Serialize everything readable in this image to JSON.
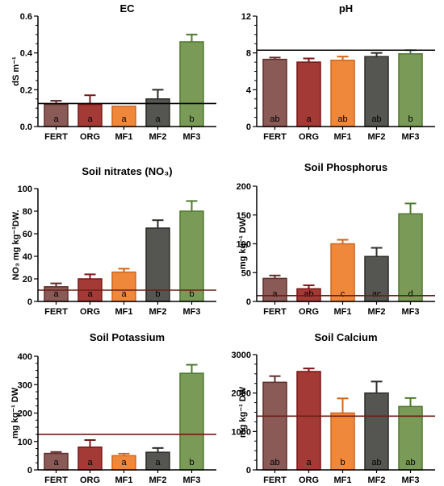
{
  "colors": {
    "FERT": "#8a5a57",
    "ORG": "#a33a36",
    "MF1": "#f0883c",
    "MF2": "#555551",
    "MF3": "#7a9a57",
    "FERT_edge": "#5e2f2c",
    "ORG_edge": "#7a1717",
    "MF1_edge": "#d0651c",
    "MF2_edge": "#2c2c28",
    "MF3_edge": "#4f7a2e",
    "ref_line_dark": "#000000",
    "ref_line_brown": "#6b1f16"
  },
  "chart_data": [
    {
      "id": "ec",
      "type": "bar",
      "title": "EC",
      "ylabel": "dS m⁻¹",
      "categories": [
        "FERT",
        "ORG",
        "MF1",
        "MF2",
        "MF3"
      ],
      "values": [
        0.12,
        0.12,
        0.11,
        0.15,
        0.46
      ],
      "errors": [
        0.02,
        0.05,
        0.0,
        0.05,
        0.04
      ],
      "letters": [
        "a",
        "a",
        "a",
        "a",
        "b"
      ],
      "ylim": [
        0,
        0.6
      ],
      "yticks": [
        "0.0",
        "0.2",
        "0.4",
        "0.6"
      ],
      "ytick_values": [
        0,
        0.2,
        0.4,
        0.6
      ],
      "minor_per_major": 4,
      "reference_line": 0.125,
      "reference_color": "ref_line_dark"
    },
    {
      "id": "ph",
      "type": "bar",
      "title": "pH",
      "ylabel": "",
      "categories": [
        "FERT",
        "ORG",
        "MF1",
        "MF2",
        "MF3"
      ],
      "values": [
        7.3,
        7.0,
        7.2,
        7.6,
        7.9
      ],
      "errors": [
        0.2,
        0.4,
        0.4,
        0.4,
        0.4
      ],
      "letters": [
        "ab",
        "a",
        "ab",
        "ab",
        "b"
      ],
      "ylim": [
        0,
        12
      ],
      "yticks": [
        "0",
        "4",
        "8",
        "12"
      ],
      "ytick_values": [
        0,
        4,
        8,
        12
      ],
      "minor_per_major": 4,
      "reference_line": 8.3,
      "reference_color": "ref_line_dark"
    },
    {
      "id": "nitrates",
      "type": "bar",
      "title": "Soil nitrates (NO₃)",
      "ylabel": "NO₃ mg kg⁻¹DW.",
      "categories": [
        "FERT",
        "ORG",
        "MF1",
        "MF2",
        "MF3"
      ],
      "values": [
        13,
        20,
        26,
        65,
        80
      ],
      "errors": [
        3,
        4,
        3,
        7,
        9
      ],
      "letters": [
        "a",
        "a",
        "a",
        "b",
        "b"
      ],
      "ylim": [
        0,
        100
      ],
      "yticks": [
        "0",
        "20",
        "40",
        "60",
        "80",
        "100"
      ],
      "ytick_values": [
        0,
        20,
        40,
        60,
        80,
        100
      ],
      "minor_per_major": 1,
      "reference_line": 10,
      "reference_color": "ref_line_brown"
    },
    {
      "id": "phosphorus",
      "type": "bar",
      "title": "Soil Phosphorus",
      "ylabel": "mg kg⁻¹ DW",
      "categories": [
        "FERT",
        "ORG",
        "MF1",
        "MF2",
        "MF3"
      ],
      "values": [
        40,
        22,
        100,
        78,
        152
      ],
      "errors": [
        5,
        6,
        7,
        15,
        18
      ],
      "letters": [
        "a",
        "ab",
        "c",
        "ac",
        "d"
      ],
      "ylim": [
        0,
        200
      ],
      "yticks": [
        "0",
        "50",
        "100",
        "150",
        "200"
      ],
      "ytick_values": [
        0,
        50,
        100,
        150,
        200
      ],
      "minor_per_major": 1,
      "reference_line": 10,
      "reference_color": "ref_line_brown"
    },
    {
      "id": "potassium",
      "type": "bar",
      "title": "Soil Potassium",
      "ylabel": "mg kg⁻¹ DW",
      "categories": [
        "FERT",
        "ORG",
        "MF1",
        "MF2",
        "MF3"
      ],
      "values": [
        58,
        80,
        50,
        62,
        340
      ],
      "errors": [
        5,
        25,
        7,
        15,
        30
      ],
      "letters": [
        "a",
        "a",
        "a",
        "a",
        "b"
      ],
      "ylim": [
        0,
        400
      ],
      "yticks": [
        "0",
        "100",
        "200",
        "300",
        "400"
      ],
      "ytick_values": [
        0,
        100,
        200,
        300,
        400
      ],
      "minor_per_major": 4,
      "reference_line": 125,
      "reference_color": "ref_line_brown"
    },
    {
      "id": "calcium",
      "type": "bar",
      "title": "Soil Calcium",
      "ylabel": "mg kg⁻¹ DW",
      "categories": [
        "FERT",
        "ORG",
        "MF1",
        "MF2",
        "MF3"
      ],
      "values": [
        2280,
        2560,
        1480,
        2000,
        1650
      ],
      "errors": [
        160,
        80,
        380,
        300,
        220
      ],
      "letters": [
        "ab",
        "a",
        "b",
        "ab",
        "ab"
      ],
      "ylim": [
        0,
        3000
      ],
      "yticks": [
        "0",
        "1000",
        "2000",
        "3000"
      ],
      "ytick_values": [
        0,
        1000,
        2000,
        3000
      ],
      "minor_per_major": 4,
      "reference_line": 1400,
      "reference_color": "ref_line_brown"
    }
  ]
}
